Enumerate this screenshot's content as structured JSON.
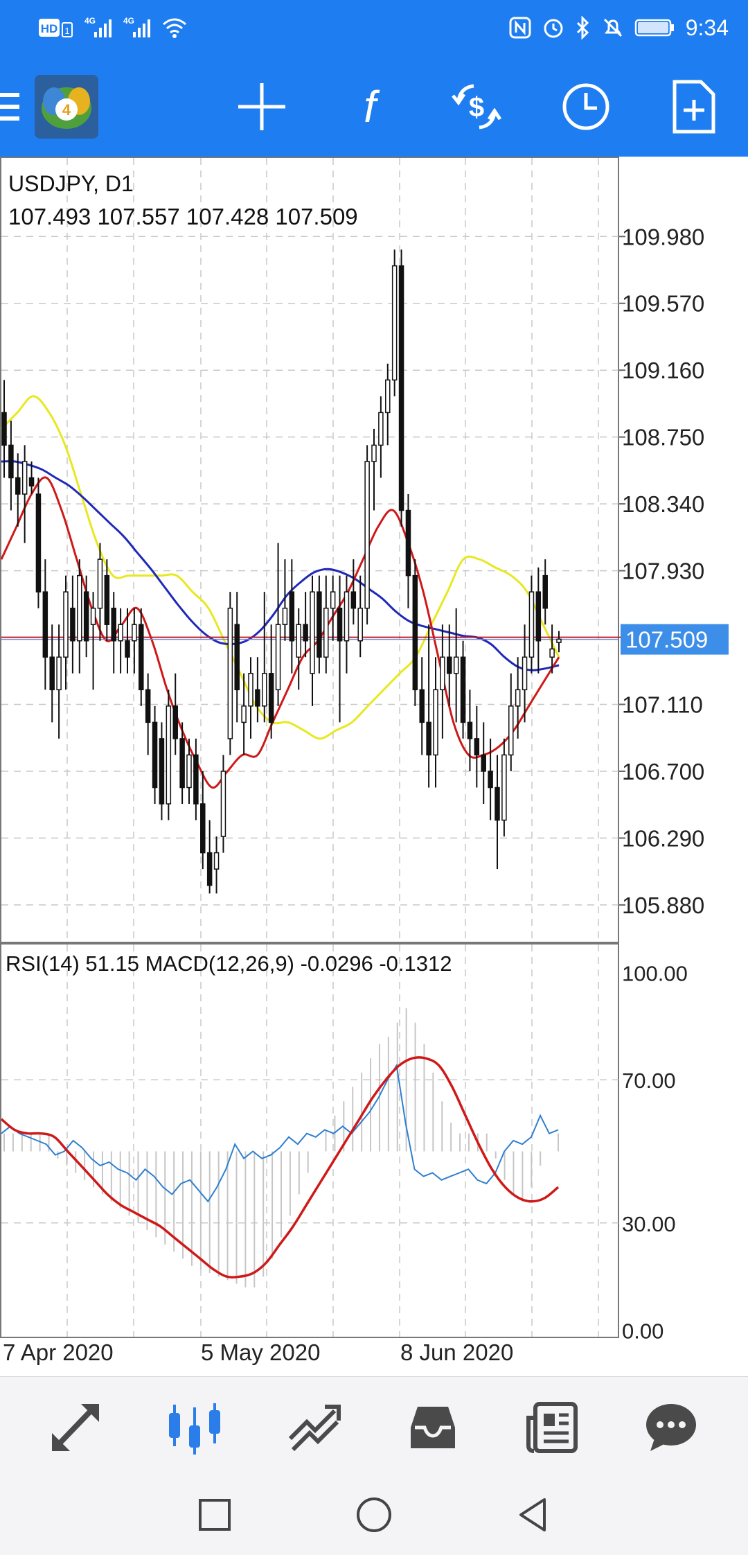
{
  "status_bar": {
    "time": "9:34",
    "network_left": "4G",
    "network_right": "4G",
    "hd_label": "HD",
    "sim_number": "1"
  },
  "toolbar": {
    "icons": [
      "menu-icon",
      "metatrader-logo-icon",
      "crosshair-icon",
      "indicators-icon",
      "trade-icon",
      "timeframe-icon",
      "new-order-icon"
    ],
    "function_glyph": "f",
    "logo_digit": "4"
  },
  "chart_data": [
    {
      "type": "candlestick",
      "symbol_label": "USDJPY, D1",
      "ohlc_label": "107.493 107.557 107.428 107.509",
      "current_price_label": "107.509",
      "y_tick_labels": [
        "109.980",
        "109.570",
        "109.160",
        "108.750",
        "108.340",
        "107.930",
        "107.110",
        "106.700",
        "106.290",
        "105.880"
      ],
      "ylim": [
        105.65,
        110.47
      ],
      "x_tick_labels": [
        "7 Apr 2020",
        "5 May 2020",
        "8 Jun 2020"
      ],
      "candles": [
        [
          108.9,
          109.1,
          108.5,
          108.7
        ],
        [
          108.7,
          108.85,
          108.3,
          108.5
        ],
        [
          108.5,
          108.65,
          108.2,
          108.4
        ],
        [
          108.4,
          108.7,
          108.1,
          108.6
        ],
        [
          108.5,
          108.6,
          108.4,
          108.45
        ],
        [
          108.4,
          108.5,
          107.7,
          107.8
        ],
        [
          107.8,
          108.0,
          107.2,
          107.4
        ],
        [
          107.4,
          107.6,
          107.0,
          107.2
        ],
        [
          107.2,
          107.6,
          106.9,
          107.4
        ],
        [
          107.4,
          107.9,
          107.2,
          107.8
        ],
        [
          107.7,
          107.9,
          107.3,
          107.5
        ],
        [
          107.5,
          108.0,
          107.3,
          107.9
        ],
        [
          107.8,
          107.9,
          107.4,
          107.5
        ],
        [
          107.6,
          107.8,
          107.2,
          107.7
        ],
        [
          107.7,
          108.1,
          107.5,
          108.0
        ],
        [
          107.9,
          108.0,
          107.5,
          107.6
        ],
        [
          107.7,
          107.8,
          107.3,
          107.5
        ],
        [
          107.5,
          107.7,
          107.3,
          107.6
        ],
        [
          107.5,
          107.7,
          107.3,
          107.4
        ],
        [
          107.5,
          107.7,
          107.3,
          107.6
        ],
        [
          107.6,
          107.7,
          107.1,
          107.2
        ],
        [
          107.2,
          107.3,
          106.8,
          107.0
        ],
        [
          107.0,
          107.1,
          106.5,
          106.6
        ],
        [
          106.9,
          107.0,
          106.4,
          106.5
        ],
        [
          106.5,
          107.2,
          106.4,
          107.1
        ],
        [
          107.1,
          107.3,
          106.8,
          106.9
        ],
        [
          106.9,
          107.0,
          106.5,
          106.6
        ],
        [
          106.6,
          106.9,
          106.5,
          106.8
        ],
        [
          106.8,
          106.9,
          106.4,
          106.5
        ],
        [
          106.5,
          106.7,
          106.1,
          106.2
        ],
        [
          106.2,
          106.4,
          105.95,
          106.0
        ],
        [
          106.1,
          106.3,
          105.95,
          106.2
        ],
        [
          106.3,
          106.8,
          106.2,
          106.7
        ],
        [
          106.9,
          107.8,
          106.8,
          107.7
        ],
        [
          107.6,
          107.8,
          107.0,
          107.2
        ],
        [
          107.0,
          107.3,
          106.8,
          107.1
        ],
        [
          107.1,
          107.4,
          106.9,
          107.3
        ],
        [
          107.2,
          107.4,
          107.0,
          107.1
        ],
        [
          107.1,
          107.8,
          107.0,
          107.3
        ],
        [
          107.3,
          107.6,
          106.9,
          107.0
        ],
        [
          107.2,
          108.1,
          107.1,
          107.6
        ],
        [
          107.6,
          108.0,
          107.5,
          107.7
        ],
        [
          107.8,
          108.0,
          107.3,
          107.5
        ],
        [
          107.4,
          107.7,
          107.2,
          107.6
        ],
        [
          107.6,
          107.8,
          107.4,
          107.5
        ],
        [
          107.3,
          107.9,
          107.1,
          107.8
        ],
        [
          107.8,
          107.9,
          107.3,
          107.4
        ],
        [
          107.4,
          107.9,
          107.3,
          107.7
        ],
        [
          107.7,
          107.9,
          107.5,
          107.8
        ],
        [
          107.7,
          107.9,
          107.0,
          107.5
        ],
        [
          107.5,
          107.9,
          107.3,
          107.8
        ],
        [
          107.8,
          108.0,
          107.6,
          107.7
        ],
        [
          107.5,
          107.9,
          107.4,
          107.7
        ],
        [
          107.7,
          108.7,
          107.6,
          108.6
        ],
        [
          108.6,
          108.8,
          108.3,
          108.7
        ],
        [
          108.7,
          109.0,
          108.5,
          108.9
        ],
        [
          108.9,
          109.2,
          108.7,
          109.1
        ],
        [
          109.1,
          109.9,
          109.0,
          109.8
        ],
        [
          109.8,
          109.9,
          108.2,
          108.3
        ],
        [
          108.3,
          108.4,
          107.7,
          107.9
        ],
        [
          107.9,
          108.0,
          107.1,
          107.2
        ],
        [
          107.2,
          107.4,
          106.8,
          107.0
        ],
        [
          107.0,
          107.6,
          106.6,
          106.8
        ],
        [
          106.8,
          107.4,
          106.6,
          107.2
        ],
        [
          107.2,
          107.6,
          106.9,
          107.4
        ],
        [
          107.4,
          107.6,
          107.1,
          107.3
        ],
        [
          107.3,
          107.7,
          107.0,
          107.4
        ],
        [
          107.4,
          107.5,
          106.9,
          107.0
        ],
        [
          107.0,
          107.2,
          106.7,
          106.9
        ],
        [
          106.9,
          107.1,
          106.6,
          106.8
        ],
        [
          106.8,
          107.0,
          106.5,
          106.7
        ],
        [
          106.7,
          106.9,
          106.4,
          106.6
        ],
        [
          106.6,
          106.8,
          106.1,
          106.4
        ],
        [
          106.4,
          106.9,
          106.3,
          106.8
        ],
        [
          106.8,
          107.3,
          106.7,
          107.1
        ],
        [
          107.1,
          107.4,
          106.9,
          107.2
        ],
        [
          107.2,
          107.6,
          107.0,
          107.4
        ],
        [
          107.4,
          107.9,
          107.3,
          107.8
        ],
        [
          107.8,
          107.95,
          107.3,
          107.5
        ],
        [
          107.9,
          108.0,
          107.6,
          107.7
        ],
        [
          107.4,
          107.6,
          107.3,
          107.45
        ],
        [
          107.49,
          107.56,
          107.43,
          107.51
        ]
      ],
      "moving_averages": [
        {
          "color": "#e8e820",
          "values": [
            108.8,
            108.9,
            109.0,
            108.9,
            108.7,
            108.4,
            108.1,
            107.9,
            107.9,
            107.9,
            107.9,
            107.9,
            107.8,
            107.7,
            107.5,
            107.3,
            107.1,
            107.0,
            107.0,
            106.95,
            106.9,
            106.95,
            107.0,
            107.1,
            107.2,
            107.3,
            107.4,
            107.6,
            107.8,
            108.0,
            108.0,
            107.95,
            107.9,
            107.8,
            107.6,
            107.4
          ]
        },
        {
          "color": "#1f28b8",
          "values": [
            108.6,
            108.6,
            108.58,
            108.55,
            108.5,
            108.45,
            108.38,
            108.3,
            108.22,
            108.14,
            108.04,
            107.94,
            107.83,
            107.72,
            107.62,
            107.54,
            107.49,
            107.48,
            107.5,
            107.56,
            107.66,
            107.78,
            107.86,
            107.92,
            107.94,
            107.92,
            107.88,
            107.82,
            107.76,
            107.68,
            107.62,
            107.59,
            107.57,
            107.55,
            107.53,
            107.52,
            107.48,
            107.4,
            107.34,
            107.32,
            107.33,
            107.35
          ]
        },
        {
          "color": "#d01818",
          "values": [
            108.0,
            108.2,
            108.4,
            108.5,
            108.3,
            108.0,
            107.7,
            107.5,
            107.6,
            107.7,
            107.5,
            107.2,
            106.95,
            106.75,
            106.6,
            106.7,
            106.8,
            106.8,
            107.0,
            107.2,
            107.4,
            107.5,
            107.65,
            107.8,
            108.0,
            108.2,
            108.3,
            108.1,
            107.8,
            107.4,
            107.0,
            106.8,
            106.8,
            106.85,
            106.95,
            107.1,
            107.25,
            107.4
          ]
        }
      ]
    },
    {
      "type": "line",
      "label": "RSI(14) 51.15 MACD(12,26,9) -0.0296 -0.1312",
      "y_tick_labels": [
        "100.00",
        "70.00",
        "30.00",
        "0.00"
      ],
      "ylim": [
        -2,
        108
      ],
      "rsi_color": "#2f7fd0",
      "rsi_values": [
        55,
        57,
        55,
        54,
        53,
        52,
        49,
        50,
        53,
        51,
        48,
        46,
        47,
        45,
        44,
        42,
        45,
        43,
        40,
        38,
        41,
        42,
        39,
        36,
        40,
        45,
        52,
        48,
        50,
        48,
        49,
        51,
        54,
        52,
        55,
        54,
        56,
        55,
        57,
        55,
        58,
        61,
        65,
        70,
        74,
        58,
        45,
        43,
        44,
        42,
        43,
        44,
        45,
        42,
        41,
        44,
        50,
        53,
        52,
        54,
        60,
        55,
        56
      ],
      "signal_color": "#d01818",
      "signal_values": [
        59,
        56,
        55,
        55,
        54,
        50,
        46,
        42,
        38,
        35,
        33,
        31,
        29,
        26,
        23,
        20,
        17,
        15,
        15,
        16,
        19,
        24,
        29,
        35,
        41,
        47,
        53,
        59,
        65,
        70,
        74,
        76,
        76,
        74,
        68,
        60,
        52,
        45,
        40,
        37,
        36,
        37,
        40
      ],
      "histogram_color": "#c6c6c6",
      "histogram_values": [
        55,
        55,
        55,
        55,
        55,
        55,
        48,
        46,
        44,
        42,
        40,
        38,
        36,
        34,
        32,
        30,
        28,
        26,
        24,
        22,
        20,
        18,
        17,
        16,
        15,
        14,
        13,
        12,
        12,
        15,
        20,
        26,
        32,
        38,
        44,
        50,
        56,
        60,
        64,
        68,
        72,
        76,
        80,
        82,
        86,
        90,
        86,
        80,
        72,
        64,
        58,
        55,
        55,
        55,
        55,
        48,
        42,
        38,
        36,
        40,
        46,
        50,
        55
      ]
    }
  ],
  "bottom_nav": {
    "icons": [
      "quotes-icon",
      "chart-icon",
      "trade-icon",
      "history-icon",
      "news-icon",
      "messages-icon"
    ],
    "active": 1
  },
  "system_nav": {
    "icons": [
      "recents-icon",
      "home-icon",
      "back-icon"
    ]
  }
}
